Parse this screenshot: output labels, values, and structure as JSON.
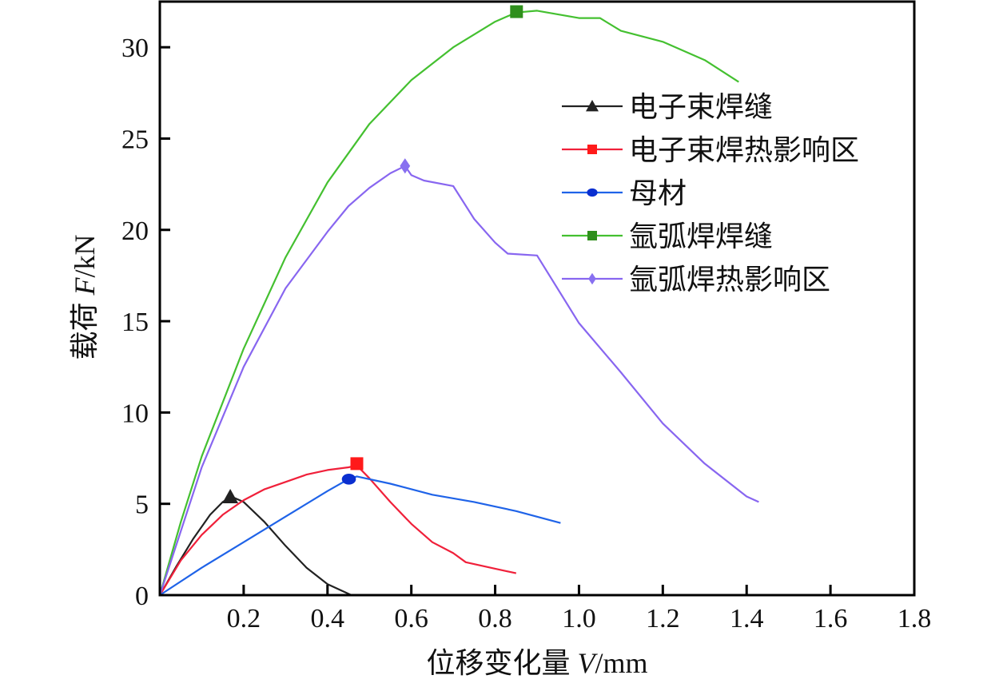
{
  "chart_data": {
    "type": "line",
    "title": "",
    "xlabel": {
      "prefix": "位移变化量 ",
      "var": "V",
      "suffix": "/mm"
    },
    "ylabel": {
      "prefix": "载荷 ",
      "var": "F",
      "suffix": "/kN"
    },
    "xlim": [
      0,
      1.8
    ],
    "ylim": [
      0,
      32.5
    ],
    "xticks": [
      0.2,
      0.4,
      0.6,
      0.8,
      1.0,
      1.2,
      1.4,
      1.6,
      1.8
    ],
    "xtick_labels": [
      "0.2",
      "0.4",
      "0.6",
      "0.8",
      "1.0",
      "1.2",
      "1.4",
      "1.6",
      "1.8"
    ],
    "yticks": [
      0,
      5,
      10,
      15,
      20,
      25,
      30
    ],
    "ytick_labels": [
      "0",
      "5",
      "10",
      "15",
      "20",
      "25",
      "30"
    ],
    "grid": false,
    "legend_position": "top-right",
    "series": [
      {
        "name": "电子束焊缝",
        "color": "#222222",
        "marker": "triangle",
        "marker_at": [
          0.168,
          5.38
        ],
        "points": [
          [
            0,
            0
          ],
          [
            0.04,
            1.6
          ],
          [
            0.08,
            3.1
          ],
          [
            0.12,
            4.4
          ],
          [
            0.15,
            5.1
          ],
          [
            0.17,
            5.4
          ],
          [
            0.2,
            5.1
          ],
          [
            0.25,
            4.0
          ],
          [
            0.3,
            2.7
          ],
          [
            0.35,
            1.5
          ],
          [
            0.4,
            0.6
          ],
          [
            0.457,
            0
          ]
        ]
      },
      {
        "name": "电子束焊热影响区",
        "color": "#f0203a",
        "marker": "square",
        "marker_color": "#ff1a1a",
        "marker_at": [
          0.47,
          7.2
        ],
        "points": [
          [
            0,
            0
          ],
          [
            0.05,
            1.9
          ],
          [
            0.1,
            3.3
          ],
          [
            0.15,
            4.4
          ],
          [
            0.2,
            5.2
          ],
          [
            0.25,
            5.8
          ],
          [
            0.3,
            6.2
          ],
          [
            0.35,
            6.6
          ],
          [
            0.4,
            6.85
          ],
          [
            0.45,
            7.0
          ],
          [
            0.47,
            7.1
          ],
          [
            0.5,
            6.4
          ],
          [
            0.55,
            5.1
          ],
          [
            0.6,
            3.9
          ],
          [
            0.65,
            2.9
          ],
          [
            0.7,
            2.3
          ],
          [
            0.73,
            1.8
          ],
          [
            0.8,
            1.45
          ],
          [
            0.85,
            1.2
          ]
        ]
      },
      {
        "name": "母材",
        "color": "#1f63e8",
        "marker": "circle",
        "marker_color": "#0a2fd0",
        "marker_at": [
          0.451,
          6.35
        ],
        "points": [
          [
            0,
            0
          ],
          [
            0.1,
            1.5
          ],
          [
            0.2,
            2.9
          ],
          [
            0.3,
            4.3
          ],
          [
            0.4,
            5.7
          ],
          [
            0.45,
            6.35
          ],
          [
            0.47,
            6.5
          ],
          [
            0.55,
            6.1
          ],
          [
            0.65,
            5.5
          ],
          [
            0.75,
            5.1
          ],
          [
            0.85,
            4.6
          ],
          [
            0.956,
            3.95
          ]
        ]
      },
      {
        "name": "氩弧焊焊缝",
        "color": "#44c030",
        "marker": "square",
        "marker_color": "#2f8f1c",
        "marker_at": [
          0.851,
          31.95
        ],
        "points": [
          [
            0,
            0
          ],
          [
            0.05,
            4
          ],
          [
            0.1,
            7.6
          ],
          [
            0.2,
            13.5
          ],
          [
            0.3,
            18.5
          ],
          [
            0.4,
            22.6
          ],
          [
            0.5,
            25.8
          ],
          [
            0.6,
            28.2
          ],
          [
            0.7,
            30.0
          ],
          [
            0.8,
            31.4
          ],
          [
            0.85,
            31.9
          ],
          [
            0.9,
            32.0
          ],
          [
            1.0,
            31.6
          ],
          [
            1.05,
            31.6
          ],
          [
            1.1,
            30.9
          ],
          [
            1.2,
            30.3
          ],
          [
            1.3,
            29.3
          ],
          [
            1.381,
            28.1
          ]
        ]
      },
      {
        "name": "氩弧焊热影响区",
        "color": "#8866f0",
        "marker": "diamond",
        "marker_color": "#8870f0",
        "marker_at": [
          0.585,
          23.5
        ],
        "points": [
          [
            0,
            0
          ],
          [
            0.05,
            3.5
          ],
          [
            0.1,
            7
          ],
          [
            0.2,
            12.5
          ],
          [
            0.3,
            16.8
          ],
          [
            0.4,
            19.9
          ],
          [
            0.45,
            21.3
          ],
          [
            0.5,
            22.3
          ],
          [
            0.55,
            23.1
          ],
          [
            0.585,
            23.5
          ],
          [
            0.6,
            23.0
          ],
          [
            0.63,
            22.7
          ],
          [
            0.7,
            22.4
          ],
          [
            0.75,
            20.6
          ],
          [
            0.8,
            19.3
          ],
          [
            0.83,
            18.7
          ],
          [
            0.9,
            18.6
          ],
          [
            1.0,
            14.9
          ],
          [
            1.1,
            12.2
          ],
          [
            1.2,
            9.4
          ],
          [
            1.3,
            7.2
          ],
          [
            1.4,
            5.4
          ],
          [
            1.429,
            5.1
          ]
        ]
      }
    ]
  }
}
